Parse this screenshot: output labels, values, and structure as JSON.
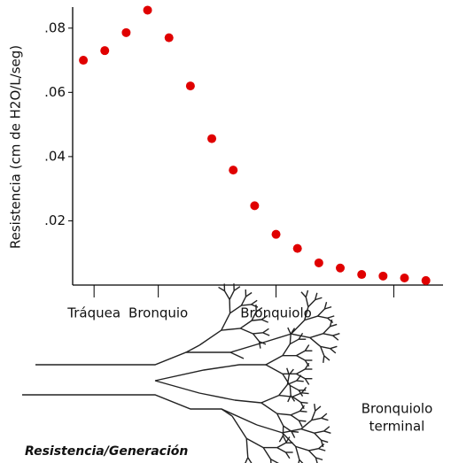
{
  "chart_data": {
    "type": "scatter",
    "y_label": "Resistencia (cm de H2O/L/seg)",
    "x": [
      0,
      1,
      2,
      3,
      4,
      5,
      6,
      7,
      8,
      9,
      10,
      11,
      12,
      13,
      14,
      15,
      16
    ],
    "series": [
      {
        "color": "#e00000",
        "values": [
          0.07,
          0.073,
          0.0786,
          0.0856,
          0.077,
          0.062,
          0.0456,
          0.0358,
          0.0247,
          0.0158,
          0.0114,
          0.0069,
          0.0053,
          0.0033,
          0.0028,
          0.0022,
          0.0014
        ]
      }
    ],
    "xlim": [
      -0.5,
      16.8
    ],
    "xticks": [
      {
        "value": 0.5,
        "label": "Tráquea"
      },
      {
        "value": 3.5,
        "label": "Bronquio"
      },
      {
        "value": 9,
        "label": "Bronquiolo"
      },
      {
        "value": 14.5,
        "label": null
      }
    ],
    "ylim": [
      0,
      0.086
    ],
    "yticks": [
      {
        "value": 0.02,
        "label": ".02"
      },
      {
        "value": 0.04,
        "label": ".04"
      },
      {
        "value": 0.06,
        "label": ".06"
      },
      {
        "value": 0.08,
        "label": ".08"
      }
    ],
    "annotation": [
      "Bronquiolo",
      "terminal"
    ],
    "footer": "Resistencia/Generación"
  }
}
